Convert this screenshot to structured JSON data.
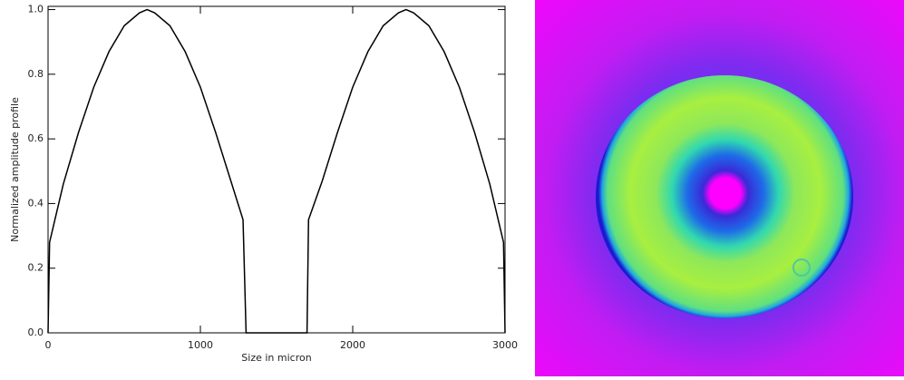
{
  "chart_data": {
    "type": "line",
    "xlabel": "Size in micron",
    "ylabel": "Normalized amplitude profile",
    "x": [
      0,
      10,
      100,
      200,
      300,
      400,
      500,
      600,
      650,
      700,
      800,
      900,
      1000,
      1100,
      1200,
      1280,
      1300,
      1700,
      1710,
      1800,
      1900,
      2000,
      2100,
      2200,
      2300,
      2350,
      2400,
      2500,
      2600,
      2700,
      2800,
      2900,
      2990,
      3000
    ],
    "values": [
      0,
      0.28,
      0.46,
      0.62,
      0.76,
      0.87,
      0.95,
      0.99,
      1.0,
      0.99,
      0.95,
      0.87,
      0.76,
      0.62,
      0.47,
      0.35,
      0,
      0,
      0.35,
      0.47,
      0.62,
      0.76,
      0.87,
      0.95,
      0.99,
      1.0,
      0.99,
      0.95,
      0.87,
      0.76,
      0.62,
      0.46,
      0.28,
      0
    ],
    "color": "#000000",
    "xlim": [
      0,
      3000
    ],
    "xticks": [
      0,
      1000,
      2000,
      3000
    ],
    "ylim": [
      0,
      1.01
    ],
    "yticks": [
      {
        "value": 0,
        "label": "0.0"
      },
      0.2,
      0.4,
      0.6,
      0.8,
      {
        "value": 1,
        "label": "1.0"
      }
    ]
  }
}
